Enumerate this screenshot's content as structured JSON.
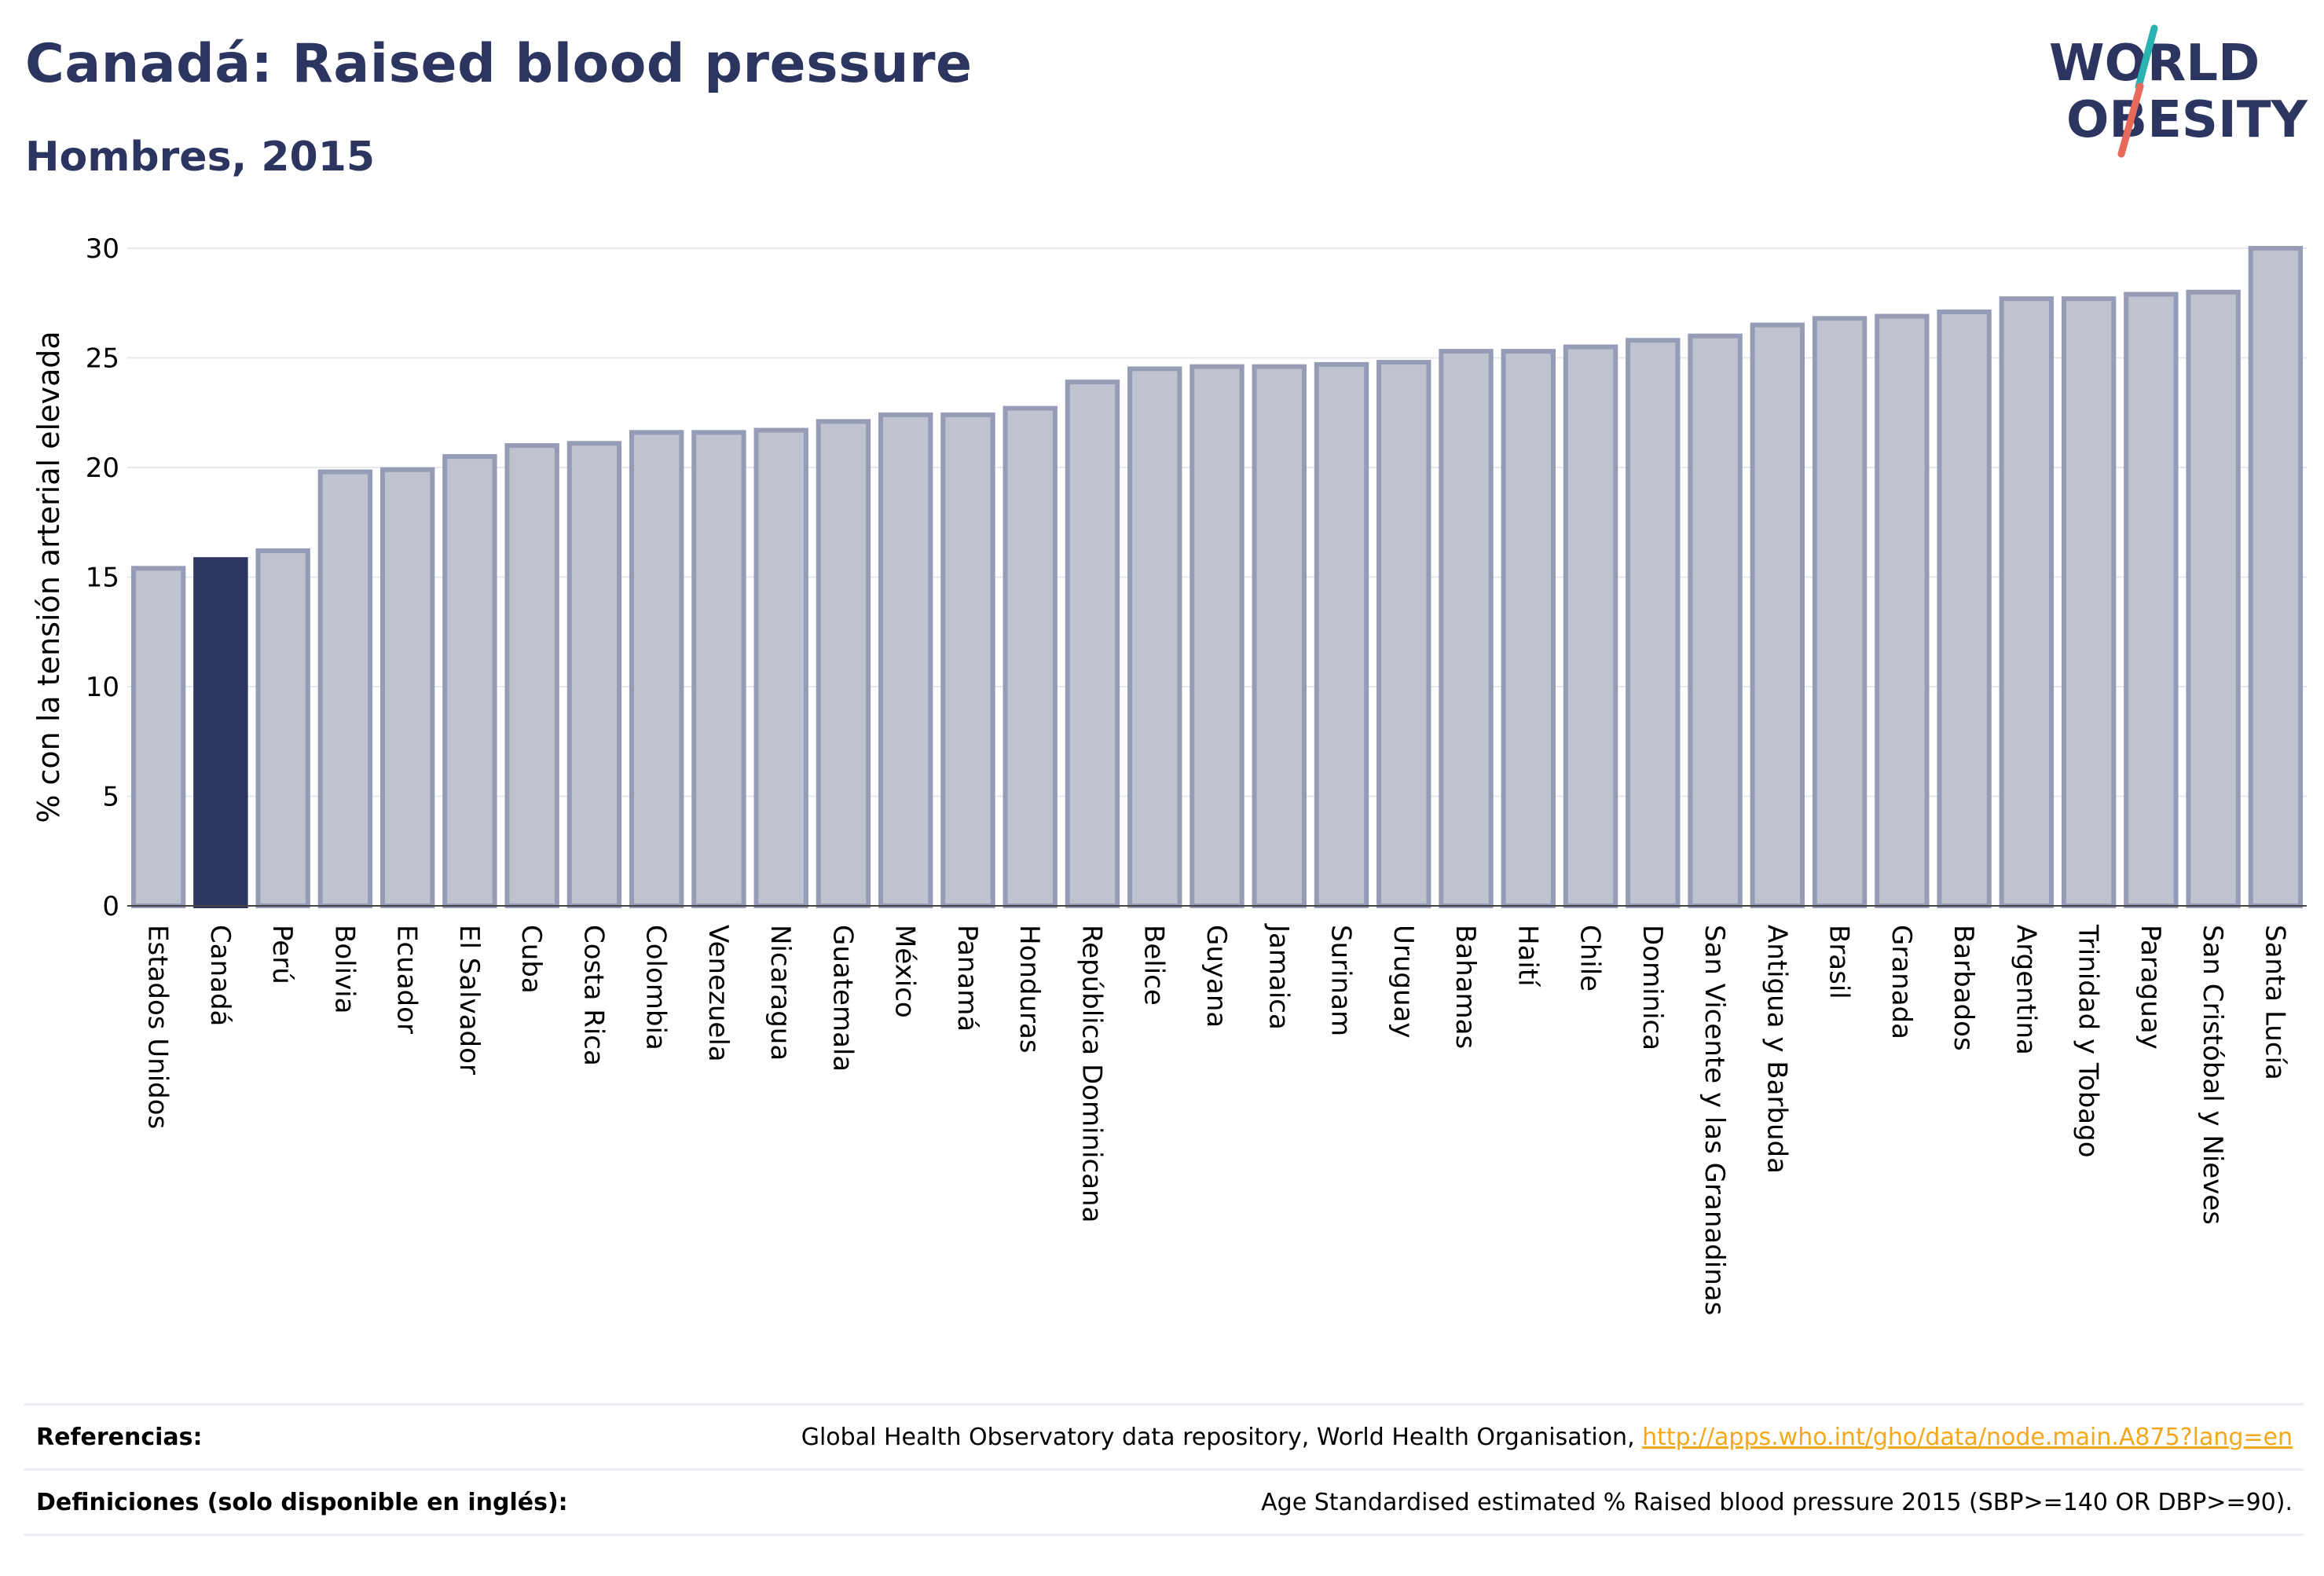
{
  "header": {
    "title": "Canadá: Raised blood pressure",
    "subtitle": "Hombres, 2015"
  },
  "logo": {
    "line1": "WORLD",
    "line2": "OBESITY"
  },
  "chart_data": {
    "type": "bar",
    "ylabel": "% con la tensión arterial elevada",
    "ylim": [
      0,
      30
    ],
    "yticks": [
      0,
      5,
      10,
      15,
      20,
      25,
      30
    ],
    "grid": true,
    "highlight": "Canadá",
    "colors": {
      "bar": "#bfc3d0",
      "bar_edge": "#959cb6",
      "highlight": "#2b3560",
      "grid": "#e6e8ef"
    },
    "categories": [
      "Estados Unidos",
      "Canadá",
      "Perú",
      "Bolivia",
      "Ecuador",
      "El Salvador",
      "Cuba",
      "Costa Rica",
      "Colombia",
      "Venezuela",
      "Nicaragua",
      "Guatemala",
      "México",
      "Panamá",
      "Honduras",
      "República Dominicana",
      "Belice",
      "Guyana",
      "Jamaica",
      "Surinam",
      "Uruguay",
      "Bahamas",
      "Haití",
      "Chile",
      "Dominica",
      "San Vicente y las Granadinas",
      "Antigua y Barbuda",
      "Brasil",
      "Granada",
      "Barbados",
      "Argentina",
      "Trinidad y Tobago",
      "Paraguay",
      "San Cristóbal y Nieves",
      "Santa Lucía"
    ],
    "values": [
      15.4,
      15.8,
      16.2,
      19.8,
      19.9,
      20.5,
      21.0,
      21.1,
      21.6,
      21.6,
      21.7,
      22.1,
      22.4,
      22.4,
      22.7,
      23.9,
      24.5,
      24.6,
      24.6,
      24.7,
      24.8,
      25.3,
      25.3,
      25.5,
      25.8,
      26.0,
      26.5,
      26.8,
      26.9,
      27.1,
      27.7,
      27.7,
      27.9,
      28.0,
      30.0
    ]
  },
  "footer": {
    "references_label": "Referencias:",
    "references_text": "Global Health Observatory data repository, World Health Organisation, ",
    "references_link": "http://apps.who.int/gho/data/node.main.A875?lang=en",
    "definitions_label": "Definiciones (solo disponible en inglés):",
    "definitions_text": "Age Standardised estimated % Raised blood pressure 2015 (SBP>=140 OR DBP>=90)."
  }
}
